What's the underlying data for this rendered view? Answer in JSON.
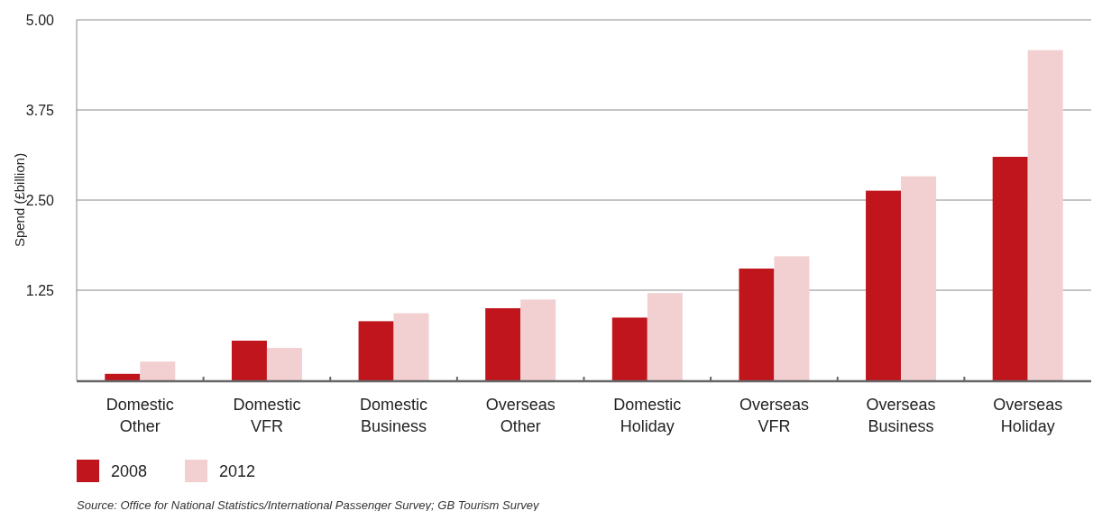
{
  "chart_data": {
    "type": "bar",
    "categories": [
      "Domestic Other",
      "Domestic VFR",
      "Domestic Business",
      "Overseas Other",
      "Domestic Holiday",
      "Overseas VFR",
      "Overseas Business",
      "Overseas Holiday"
    ],
    "series": [
      {
        "name": "2008",
        "color": "#c0151c",
        "values": [
          0.09,
          0.55,
          0.82,
          1.0,
          0.87,
          1.55,
          2.63,
          3.1
        ]
      },
      {
        "name": "2012",
        "color": "#f2d0d2",
        "values": [
          0.26,
          0.45,
          0.93,
          1.12,
          1.21,
          1.72,
          2.83,
          4.58
        ]
      }
    ],
    "ylabel": "Spend (£billion)",
    "ylim": [
      0,
      5
    ],
    "yticks": [
      {
        "value": 0,
        "label": null
      },
      1.25,
      {
        "value": 2.5,
        "label": "2.50"
      },
      3.75,
      {
        "value": 5,
        "label": "5.00"
      }
    ],
    "grid": "y",
    "legend": "bottom left",
    "annotations": [
      "Source: Office for National Statistics/International Passenger Survey; GB Tourism Survey"
    ]
  }
}
